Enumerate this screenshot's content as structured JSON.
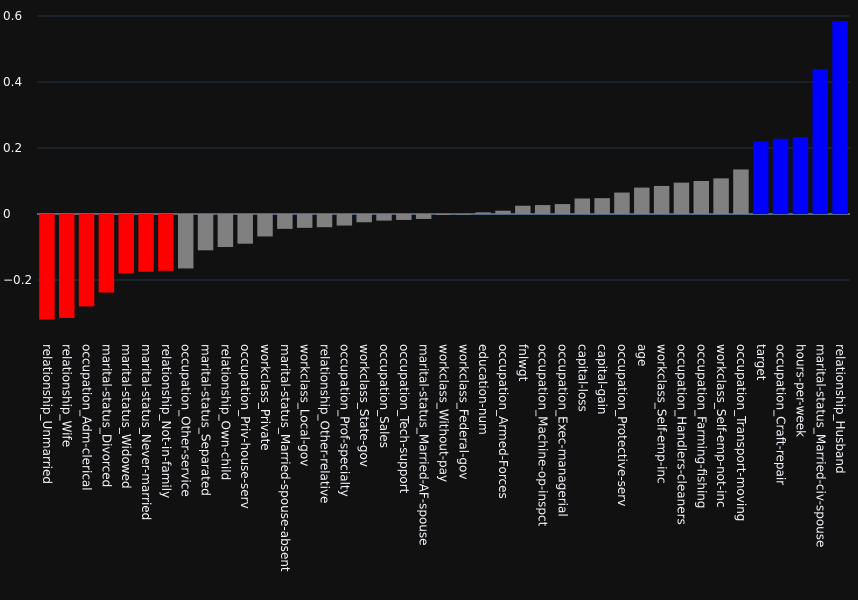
{
  "colors": {
    "background": "#111111",
    "grid": "#283442",
    "text": "#f2f5fa",
    "negative_top": "#ff0000",
    "neutral": "#808080",
    "positive_top": "#0000ff"
  },
  "chart_data": {
    "type": "bar",
    "title": "",
    "xlabel": "",
    "ylabel": "",
    "ylim": [
      -0.33,
      0.6
    ],
    "yticks": [
      -0.2,
      0,
      0.2,
      0.4,
      0.6
    ],
    "ytick_labels": [
      "−0.2",
      "0",
      "0.2",
      "0.4",
      "0.6"
    ],
    "grid": true,
    "categories": [
      "relationship_Unmarried",
      "relationship_Wife",
      "occupation_Adm-clerical",
      "marital-status_Divorced",
      "marital-status_Widowed",
      "marital-status_Never-married",
      "relationship_Not-in-family",
      "occupation_Other-service",
      "marital-status_Separated",
      "relationship_Own-child",
      "occupation_Priv-house-serv",
      "workclass_Private",
      "marital-status_Married-spouse-absent",
      "workclass_Local-gov",
      "relationship_Other-relative",
      "occupation_Prof-specialty",
      "workclass_State-gov",
      "occupation_Sales",
      "occupation_Tech-support",
      "marital-status_Married-AF-spouse",
      "workclass_Without-pay",
      "workclass_Federal-gov",
      "education-num",
      "occupation_Armed-Forces",
      "fnlwgt",
      "occupation_Machine-op-inspct",
      "occupation_Exec-managerial",
      "capital-loss",
      "capital-gain",
      "occupation_Protective-serv",
      "age",
      "workclass_Self-emp-inc",
      "occupation_Handlers-cleaners",
      "occupation_Farming-fishing",
      "workclass_Self-emp-not-inc",
      "occupation_Transport-moving",
      "target",
      "occupation_Craft-repair",
      "hours-per-week",
      "marital-status_Married-civ-spouse",
      "relationship_Husband"
    ],
    "values": [
      -0.32,
      -0.315,
      -0.28,
      -0.238,
      -0.18,
      -0.175,
      -0.172,
      -0.165,
      -0.11,
      -0.1,
      -0.09,
      -0.068,
      -0.045,
      -0.042,
      -0.04,
      -0.035,
      -0.025,
      -0.02,
      -0.018,
      -0.015,
      -0.003,
      -0.002,
      0.005,
      0.01,
      0.025,
      0.027,
      0.03,
      0.047,
      0.048,
      0.065,
      0.08,
      0.085,
      0.095,
      0.1,
      0.108,
      0.135,
      0.22,
      0.228,
      0.233,
      0.438,
      0.585
    ],
    "bar_colors": [
      "#ff0000",
      "#ff0000",
      "#ff0000",
      "#ff0000",
      "#ff0000",
      "#ff0000",
      "#ff0000",
      "#808080",
      "#808080",
      "#808080",
      "#808080",
      "#808080",
      "#808080",
      "#808080",
      "#808080",
      "#808080",
      "#808080",
      "#808080",
      "#808080",
      "#808080",
      "#808080",
      "#808080",
      "#808080",
      "#808080",
      "#808080",
      "#808080",
      "#808080",
      "#808080",
      "#808080",
      "#808080",
      "#808080",
      "#808080",
      "#808080",
      "#808080",
      "#808080",
      "#808080",
      "#0000ff",
      "#0000ff",
      "#0000ff",
      "#0000ff",
      "#0000ff"
    ]
  }
}
